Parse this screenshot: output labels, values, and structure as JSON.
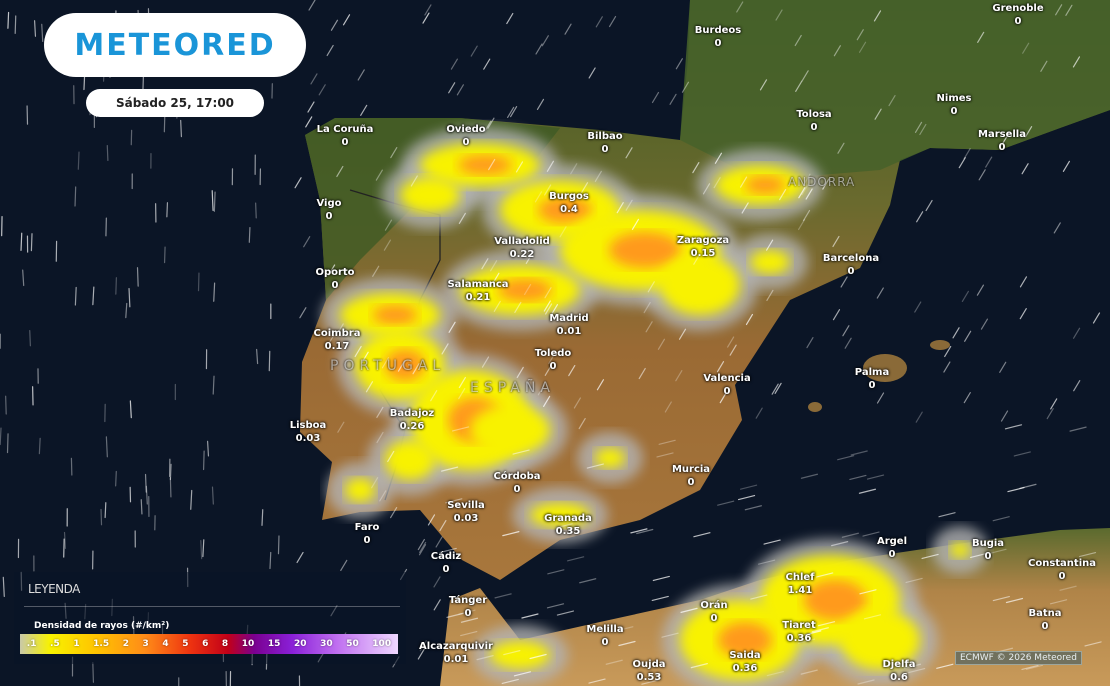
{
  "brand": {
    "logo_text": "METEORED",
    "datetime": "Sábado 25, 17:00"
  },
  "colors": {
    "ocean": "#0b1526",
    "brand": "#1a95d8",
    "storm_low": "#f8f200",
    "storm_mid": "#ff9a1a",
    "storm_halo": "#b4b4b4"
  },
  "countries": [
    "PORTUGAL",
    "ESPAÑA",
    "ANDORRA"
  ],
  "cities": [
    {
      "name": "Burdeos",
      "value": "0"
    },
    {
      "name": "Grenoble",
      "value": "0"
    },
    {
      "name": "Nimes",
      "value": "0"
    },
    {
      "name": "Tolosa",
      "value": "0"
    },
    {
      "name": "Marsella",
      "value": "0"
    },
    {
      "name": "La Coruña",
      "value": "0"
    },
    {
      "name": "Oviedo",
      "value": "0"
    },
    {
      "name": "Bilbao",
      "value": "0"
    },
    {
      "name": "Burgos",
      "value": "0.4"
    },
    {
      "name": "Valladolid",
      "value": "0.22"
    },
    {
      "name": "Zaragoza",
      "value": "0.15"
    },
    {
      "name": "Barcelona",
      "value": "0"
    },
    {
      "name": "Vigo",
      "value": "0"
    },
    {
      "name": "Oporto",
      "value": "0"
    },
    {
      "name": "Salamanca",
      "value": "0.21"
    },
    {
      "name": "Coimbra",
      "value": "0.17"
    },
    {
      "name": "Madrid",
      "value": "0.01"
    },
    {
      "name": "Toledo",
      "value": "0"
    },
    {
      "name": "Valencia",
      "value": "0"
    },
    {
      "name": "Palma",
      "value": "0"
    },
    {
      "name": "Lisboa",
      "value": "0.03"
    },
    {
      "name": "Badajoz",
      "value": "0.26"
    },
    {
      "name": "Córdoba",
      "value": "0"
    },
    {
      "name": "Murcia",
      "value": "0"
    },
    {
      "name": "Sevilla",
      "value": "0.03"
    },
    {
      "name": "Granada",
      "value": "0.35"
    },
    {
      "name": "Faro",
      "value": "0"
    },
    {
      "name": "Cádiz",
      "value": "0"
    },
    {
      "name": "Argel",
      "value": "0"
    },
    {
      "name": "Bugia",
      "value": "0"
    },
    {
      "name": "Constantina",
      "value": "0"
    },
    {
      "name": "Chlef",
      "value": "1.41"
    },
    {
      "name": "Tánger",
      "value": "0"
    },
    {
      "name": "Orán",
      "value": "0"
    },
    {
      "name": "Melilla",
      "value": "0"
    },
    {
      "name": "Batna",
      "value": "0"
    },
    {
      "name": "Tiaret",
      "value": "0.36"
    },
    {
      "name": "Alcazarquivir",
      "value": "0.01"
    },
    {
      "name": "Saida",
      "value": "0.36"
    },
    {
      "name": "Oujda",
      "value": "0.53"
    },
    {
      "name": "Djelfa",
      "value": "0.6"
    }
  ],
  "legend": {
    "title": "LEYENDA",
    "subtitle": "Densidad de rayos (#/km²)",
    "ticks": [
      ".1",
      ".5",
      "1",
      "1.5",
      "2",
      "3",
      "4",
      "5",
      "6",
      "8",
      "10",
      "15",
      "20",
      "30",
      "50",
      "100"
    ]
  },
  "attribution": "ECMWF © 2026 Meteored"
}
